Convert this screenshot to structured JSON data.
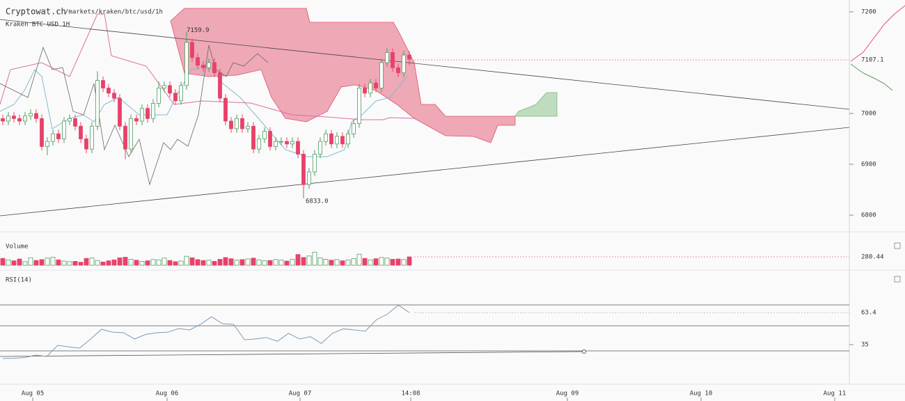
{
  "header": {
    "site": "Cryptowat.ch",
    "path": "/markets/kraken/btc/usd/1h",
    "market": "Kraken BTC USD 1H"
  },
  "price_chart": {
    "yticks": [
      7200,
      7000,
      6900,
      6800
    ],
    "last_price": "7107.1",
    "high_label": "7159.9",
    "low_label": "6833.0",
    "candles": [
      [
        6990,
        6998,
        6977,
        6985
      ],
      [
        6985,
        7003,
        6977,
        6995
      ],
      [
        6995,
        7003,
        6982,
        6990
      ],
      [
        6990,
        6998,
        6977,
        6985
      ],
      [
        6985,
        7003,
        6977,
        6995
      ],
      [
        6995,
        7008,
        6987,
        7000
      ],
      [
        7000,
        7008,
        6982,
        6990
      ],
      [
        6990,
        6998,
        6927,
        6935
      ],
      [
        6935,
        6953,
        6918,
        6945
      ],
      [
        6945,
        6968,
        6937,
        6960
      ],
      [
        6960,
        6968,
        6942,
        6950
      ],
      [
        6950,
        6993,
        6942,
        6985
      ],
      [
        6985,
        6998,
        6977,
        6990
      ],
      [
        6990,
        6998,
        6967,
        6975
      ],
      [
        6975,
        6983,
        6942,
        6950
      ],
      [
        6950,
        6958,
        6922,
        6930
      ],
      [
        6930,
        6983,
        6922,
        6975
      ],
      [
        6975,
        7083,
        6967,
        7065
      ],
      [
        7065,
        7073,
        7042,
        7050
      ],
      [
        7050,
        7058,
        7032,
        7040
      ],
      [
        7040,
        7048,
        7022,
        7030
      ],
      [
        7030,
        7038,
        6967,
        6975
      ],
      [
        6975,
        6983,
        6910,
        6930
      ],
      [
        6930,
        6998,
        6922,
        6990
      ],
      [
        6990,
        6998,
        6977,
        6985
      ],
      [
        6985,
        7018,
        6977,
        7010
      ],
      [
        7010,
        7018,
        6982,
        6990
      ],
      [
        6990,
        7028,
        6982,
        7020
      ],
      [
        7020,
        7063,
        7012,
        7050
      ],
      [
        7050,
        7063,
        7042,
        7055
      ],
      [
        7055,
        7063,
        7032,
        7040
      ],
      [
        7040,
        7048,
        7017,
        7025
      ],
      [
        7025,
        7063,
        7017,
        7055
      ],
      [
        7055,
        7159.9,
        7047,
        7140
      ],
      [
        7140,
        7148,
        7102,
        7110
      ],
      [
        7110,
        7118,
        7087,
        7095
      ],
      [
        7095,
        7103,
        7082,
        7090
      ],
      [
        7090,
        7108,
        7082,
        7100
      ],
      [
        7100,
        7108,
        7072,
        7080
      ],
      [
        7080,
        7088,
        7022,
        7030
      ],
      [
        7030,
        7038,
        6977,
        6985
      ],
      [
        6985,
        6993,
        6962,
        6970
      ],
      [
        6970,
        6998,
        6962,
        6990
      ],
      [
        6990,
        6998,
        6962,
        6970
      ],
      [
        6970,
        6983,
        6962,
        6975
      ],
      [
        6975,
        6983,
        6922,
        6930
      ],
      [
        6930,
        6958,
        6922,
        6950
      ],
      [
        6950,
        6973,
        6942,
        6965
      ],
      [
        6965,
        6973,
        6927,
        6935
      ],
      [
        6935,
        6953,
        6927,
        6945
      ],
      [
        6945,
        6953,
        6937,
        6945
      ],
      [
        6945,
        6953,
        6932,
        6940
      ],
      [
        6940,
        6953,
        6932,
        6945
      ],
      [
        6945,
        6953,
        6912,
        6920
      ],
      [
        6920,
        6928,
        6833.0,
        6860
      ],
      [
        6860,
        6893,
        6852,
        6885
      ],
      [
        6885,
        6928,
        6877,
        6920
      ],
      [
        6920,
        6953,
        6912,
        6945
      ],
      [
        6945,
        6968,
        6937,
        6960
      ],
      [
        6960,
        6968,
        6932,
        6940
      ],
      [
        6940,
        6963,
        6932,
        6955
      ],
      [
        6955,
        6963,
        6932,
        6940
      ],
      [
        6940,
        6968,
        6932,
        6960
      ],
      [
        6960,
        6988,
        6952,
        6980
      ],
      [
        6980,
        7058,
        6972,
        7050
      ],
      [
        7050,
        7058,
        7032,
        7040
      ],
      [
        7040,
        7068,
        7032,
        7060
      ],
      [
        7060,
        7068,
        7042,
        7050
      ],
      [
        7050,
        7108,
        7042,
        7100
      ],
      [
        7100,
        7128,
        7092,
        7120
      ],
      [
        7120,
        7128,
        7082,
        7090
      ],
      [
        7090,
        7098,
        7072,
        7080
      ],
      [
        7080,
        7123,
        7072,
        7115
      ],
      [
        7115,
        7123,
        7095,
        7107.1
      ]
    ]
  },
  "volume": {
    "label": "Volume",
    "last": "280.44",
    "values": [
      230,
      180,
      150,
      210,
      120,
      250,
      160,
      190,
      240,
      270,
      180,
      140,
      120,
      130,
      100,
      230,
      240,
      160,
      110,
      150,
      180,
      250,
      270,
      200,
      170,
      130,
      150,
      190,
      180,
      240,
      160,
      120,
      140,
      300,
      250,
      190,
      160,
      170,
      130,
      200,
      260,
      220,
      170,
      190,
      210,
      240,
      180,
      150,
      160,
      190,
      170,
      140,
      200,
      360,
      260,
      310,
      440,
      250,
      200,
      170,
      190,
      150,
      180,
      220,
      370,
      230,
      180,
      220,
      260,
      240,
      200,
      210,
      190,
      280.44
    ]
  },
  "rsi": {
    "label": "RSI(14)",
    "last": "63.4",
    "ticks": [
      35
    ],
    "values": [
      22.7,
      22.9,
      23.5,
      25.7,
      24.5,
      34.4,
      33,
      31.9,
      40,
      48.6,
      46,
      45.5,
      40,
      44,
      45.5,
      46,
      49.2,
      48,
      53,
      59.7,
      53.5,
      53,
      39.3,
      40,
      41.2,
      38,
      45,
      40,
      42,
      36,
      45,
      49,
      48,
      47,
      57,
      62,
      70,
      63.4
    ]
  },
  "time_axis": [
    "Aug 05",
    "Aug 06",
    "Aug 07",
    "14:08",
    "Aug 09",
    "Aug 10",
    "Aug 11"
  ]
}
